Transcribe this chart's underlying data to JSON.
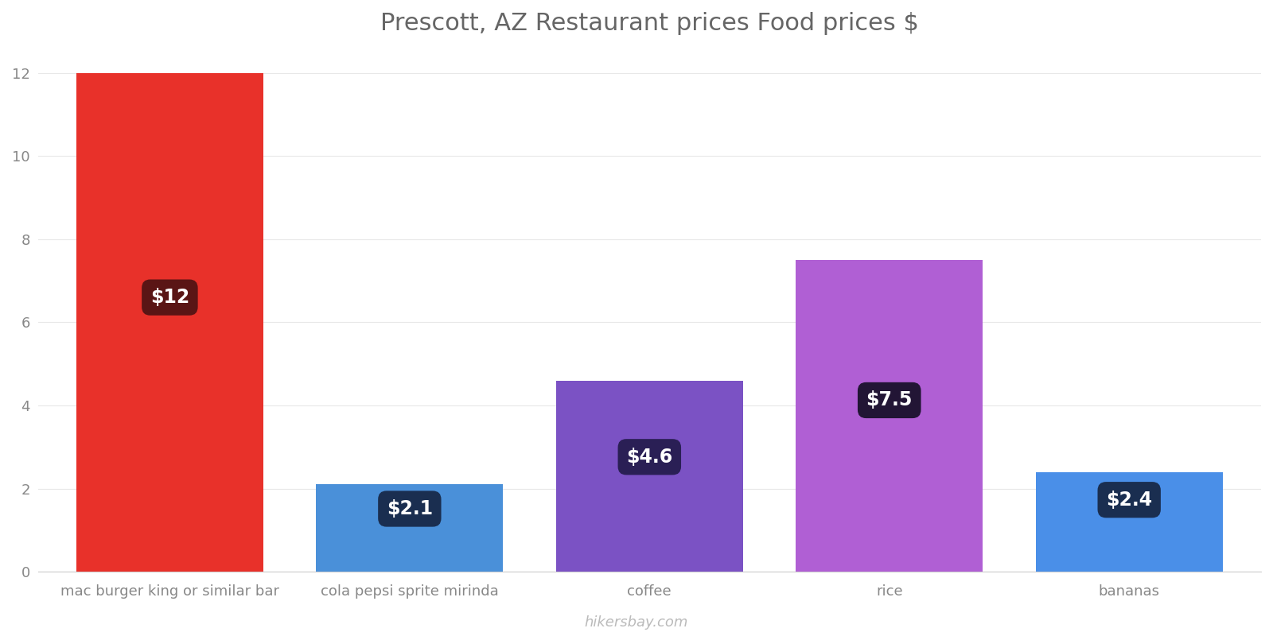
{
  "title": "Prescott, AZ Restaurant prices Food prices $",
  "categories": [
    "mac burger king or similar bar",
    "cola pepsi sprite mirinda",
    "coffee",
    "rice",
    "bananas"
  ],
  "values": [
    12,
    2.1,
    4.6,
    7.5,
    2.4
  ],
  "bar_colors": [
    "#e8312a",
    "#4a90d9",
    "#7b52c4",
    "#b05fd4",
    "#4a8fe8"
  ],
  "label_bg_colors": [
    "#5a1515",
    "#1a2e50",
    "#2a1f55",
    "#221535",
    "#1a2e50"
  ],
  "labels": [
    "$12",
    "$2.1",
    "$4.6",
    "$7.5",
    "$2.4"
  ],
  "ylim": [
    0,
    12.5
  ],
  "yticks": [
    0,
    2,
    4,
    6,
    8,
    10,
    12
  ],
  "watermark": "hikersbay.com",
  "title_fontsize": 22,
  "tick_fontsize": 13,
  "label_fontsize": 17,
  "background_color": "#ffffff",
  "bar_width": 0.78
}
